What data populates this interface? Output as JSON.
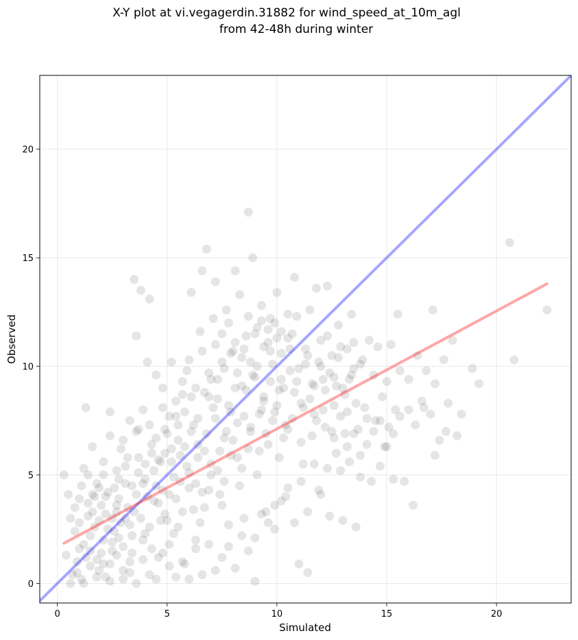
{
  "chart_data": {
    "type": "scatter",
    "title": [
      "X-Y plot at vi.vegagerdin.31882 for wind_speed_at_10m_agl",
      "from 42-48h during winter"
    ],
    "xlabel": "Simulated",
    "ylabel": "Observed",
    "xlim": [
      -0.8,
      23.4
    ],
    "ylim": [
      -0.9,
      23.4
    ],
    "xticks": [
      0,
      5,
      10,
      15,
      20
    ],
    "yticks": [
      0,
      5,
      10,
      15,
      20
    ],
    "xtick_labels": [
      "0",
      "5",
      "10",
      "15",
      "20"
    ],
    "ytick_labels": [
      "0",
      "5",
      "10",
      "15",
      "20"
    ],
    "grid": true,
    "point_color": "#000000",
    "point_opacity": 0.1,
    "points": [
      [
        0.3,
        5.0
      ],
      [
        0.5,
        4.1
      ],
      [
        0.6,
        3.0
      ],
      [
        0.8,
        2.4
      ],
      [
        1.0,
        1.6
      ],
      [
        1.1,
        0.2
      ],
      [
        1.2,
        5.3
      ],
      [
        1.3,
        8.1
      ],
      [
        1.4,
        3.1
      ],
      [
        1.5,
        2.2
      ],
      [
        1.6,
        6.3
      ],
      [
        1.7,
        4.0
      ],
      [
        1.8,
        1.1
      ],
      [
        1.9,
        2.9
      ],
      [
        2.0,
        3.6
      ],
      [
        2.1,
        5.0
      ],
      [
        2.2,
        0.3
      ],
      [
        2.3,
        2.5
      ],
      [
        2.4,
        7.9
      ],
      [
        2.5,
        1.9
      ],
      [
        2.6,
        4.4
      ],
      [
        2.7,
        3.3
      ],
      [
        2.8,
        2.1
      ],
      [
        2.9,
        6.2
      ],
      [
        3.0,
        0.6
      ],
      [
        3.1,
        3.0
      ],
      [
        3.2,
        5.8
      ],
      [
        3.3,
        2.7
      ],
      [
        3.4,
        1.4
      ],
      [
        3.5,
        14.0
      ],
      [
        3.6,
        11.4
      ],
      [
        3.7,
        7.1
      ],
      [
        3.8,
        13.5
      ],
      [
        3.9,
        4.6
      ],
      [
        4.0,
        2.3
      ],
      [
        4.1,
        10.2
      ],
      [
        4.2,
        13.1
      ],
      [
        4.3,
        6.0
      ],
      [
        4.4,
        3.8
      ],
      [
        4.5,
        9.6
      ],
      [
        4.6,
        1.2
      ],
      [
        4.7,
        5.6
      ],
      [
        4.8,
        8.1
      ],
      [
        4.9,
        3.2
      ],
      [
        5.0,
        6.9
      ],
      [
        5.1,
        1.8
      ],
      [
        5.2,
        10.2
      ],
      [
        5.3,
        4.9
      ],
      [
        5.4,
        7.7
      ],
      [
        5.5,
        2.6
      ],
      [
        5.6,
        5.9
      ],
      [
        5.7,
        8.7
      ],
      [
        5.8,
        0.9
      ],
      [
        5.9,
        9.8
      ],
      [
        6.0,
        4.4
      ],
      [
        6.1,
        13.4
      ],
      [
        6.2,
        7.3
      ],
      [
        6.3,
        2.0
      ],
      [
        6.4,
        6.4
      ],
      [
        6.5,
        11.6
      ],
      [
        6.6,
        14.4
      ],
      [
        6.7,
        3.5
      ],
      [
        6.8,
        15.4
      ],
      [
        6.9,
        8.6
      ],
      [
        7.0,
        5.0
      ],
      [
        7.1,
        12.2
      ],
      [
        7.2,
        13.9
      ],
      [
        7.3,
        9.4
      ],
      [
        7.4,
        4.1
      ],
      [
        7.5,
        11.5
      ],
      [
        7.6,
        6.7
      ],
      [
        7.7,
        12.6
      ],
      [
        7.8,
        2.7
      ],
      [
        7.9,
        7.9
      ],
      [
        8.0,
        10.7
      ],
      [
        8.1,
        14.4
      ],
      [
        8.2,
        5.8
      ],
      [
        8.3,
        13.3
      ],
      [
        8.4,
        9.1
      ],
      [
        8.5,
        3.0
      ],
      [
        8.6,
        11.4
      ],
      [
        8.7,
        17.1
      ],
      [
        8.8,
        7.2
      ],
      [
        8.9,
        15.0
      ],
      [
        9.0,
        0.1
      ],
      [
        9.1,
        10.0
      ],
      [
        9.2,
        6.1
      ],
      [
        9.3,
        12.1
      ],
      [
        9.4,
        8.4
      ],
      [
        9.5,
        3.3
      ],
      [
        9.6,
        11.7
      ],
      [
        9.7,
        9.3
      ],
      [
        9.8,
        7.5
      ],
      [
        9.9,
        2.5
      ],
      [
        10.0,
        13.4
      ],
      [
        10.1,
        8.9
      ],
      [
        10.2,
        10.6
      ],
      [
        10.3,
        6.7
      ],
      [
        10.4,
        4.0
      ],
      [
        10.5,
        11.3
      ],
      [
        10.6,
        9.8
      ],
      [
        10.7,
        7.6
      ],
      [
        10.8,
        14.1
      ],
      [
        10.9,
        12.3
      ],
      [
        11.0,
        0.9
      ],
      [
        11.1,
        8.3
      ],
      [
        11.2,
        5.5
      ],
      [
        11.3,
        10.1
      ],
      [
        11.4,
        0.5
      ],
      [
        11.5,
        12.6
      ],
      [
        11.6,
        6.8
      ],
      [
        11.7,
        9.1
      ],
      [
        11.8,
        13.6
      ],
      [
        11.9,
        4.3
      ],
      [
        12.0,
        11.2
      ],
      [
        12.1,
        8.0
      ],
      [
        12.2,
        7.2
      ],
      [
        12.3,
        13.7
      ],
      [
        12.4,
        3.1
      ],
      [
        12.5,
        10.5
      ],
      [
        12.6,
        9.5
      ],
      [
        12.7,
        6.0
      ],
      [
        12.8,
        11.9
      ],
      [
        12.9,
        7.7
      ],
      [
        13.0,
        2.9
      ],
      [
        13.1,
        8.7
      ],
      [
        13.2,
        10.8
      ],
      [
        13.3,
        5.6
      ],
      [
        13.4,
        12.4
      ],
      [
        13.5,
        9.9
      ],
      [
        13.6,
        2.6
      ],
      [
        13.7,
        7.1
      ],
      [
        13.8,
        4.9
      ],
      [
        13.9,
        10.3
      ],
      [
        14.0,
        8.1
      ],
      [
        14.1,
        6.4
      ],
      [
        14.2,
        11.2
      ],
      [
        14.3,
        4.7
      ],
      [
        14.4,
        9.6
      ],
      [
        14.5,
        7.5
      ],
      [
        14.6,
        10.9
      ],
      [
        14.7,
        5.4
      ],
      [
        14.8,
        8.6
      ],
      [
        14.9,
        6.3
      ],
      [
        15.0,
        9.3
      ],
      [
        15.1,
        7.2
      ],
      [
        15.2,
        11.0
      ],
      [
        15.3,
        4.8
      ],
      [
        15.4,
        8.0
      ],
      [
        15.5,
        12.4
      ],
      [
        15.6,
        9.8
      ],
      [
        15.8,
        4.7
      ],
      [
        16.0,
        9.4
      ],
      [
        16.2,
        3.6
      ],
      [
        16.4,
        10.5
      ],
      [
        16.6,
        8.4
      ],
      [
        16.8,
        9.8
      ],
      [
        17.0,
        7.8
      ],
      [
        17.1,
        12.6
      ],
      [
        17.2,
        5.9
      ],
      [
        17.4,
        6.6
      ],
      [
        17.6,
        10.3
      ],
      [
        17.8,
        8.3
      ],
      [
        18.0,
        11.2
      ],
      [
        18.2,
        6.8
      ],
      [
        18.4,
        7.8
      ],
      [
        18.9,
        9.9
      ],
      [
        19.2,
        9.2
      ],
      [
        20.6,
        15.7
      ],
      [
        20.8,
        10.3
      ],
      [
        22.3,
        12.6
      ],
      [
        0.9,
        0.5
      ],
      [
        1.2,
        1.8
      ],
      [
        1.5,
        0.8
      ],
      [
        1.7,
        2.6
      ],
      [
        2.0,
        1.4
      ],
      [
        2.2,
        3.2
      ],
      [
        2.4,
        0.9
      ],
      [
        2.6,
        2.4
      ],
      [
        2.8,
        3.9
      ],
      [
        3.0,
        1.7
      ],
      [
        3.2,
        3.5
      ],
      [
        3.4,
        2.2
      ],
      [
        3.6,
        4.1
      ],
      [
        3.8,
        3.0
      ],
      [
        4.0,
        4.8
      ],
      [
        4.2,
        2.6
      ],
      [
        4.4,
        5.2
      ],
      [
        4.6,
        3.7
      ],
      [
        4.8,
        4.3
      ],
      [
        5.0,
        2.9
      ],
      [
        5.2,
        5.6
      ],
      [
        5.4,
        3.9
      ],
      [
        5.6,
        4.7
      ],
      [
        5.8,
        6.3
      ],
      [
        6.0,
        5.1
      ],
      [
        6.2,
        3.4
      ],
      [
        6.4,
        5.8
      ],
      [
        6.6,
        4.2
      ],
      [
        6.8,
        6.9
      ],
      [
        7.0,
        5.5
      ],
      [
        7.2,
        7.6
      ],
      [
        7.4,
        6.1
      ],
      [
        7.6,
        4.7
      ],
      [
        7.8,
        8.2
      ],
      [
        8.0,
        6.6
      ],
      [
        8.2,
        7.4
      ],
      [
        8.4,
        5.3
      ],
      [
        8.6,
        8.9
      ],
      [
        8.8,
        7.0
      ],
      [
        9.0,
        9.5
      ],
      [
        9.2,
        7.8
      ],
      [
        9.4,
        8.6
      ],
      [
        9.6,
        6.4
      ],
      [
        9.8,
        10.1
      ],
      [
        10.0,
        8.2
      ],
      [
        10.2,
        9.4
      ],
      [
        10.4,
        7.3
      ],
      [
        10.6,
        10.8
      ],
      [
        10.8,
        8.8
      ],
      [
        11.0,
        9.9
      ],
      [
        11.2,
        8.1
      ],
      [
        11.4,
        10.5
      ],
      [
        11.6,
        9.2
      ],
      [
        11.8,
        7.5
      ],
      [
        12.0,
        10.0
      ],
      [
        12.2,
        8.9
      ],
      [
        12.4,
        9.7
      ],
      [
        12.6,
        8.2
      ],
      [
        12.8,
        10.4
      ],
      [
        13.0,
        9.0
      ],
      [
        13.2,
        7.9
      ],
      [
        13.4,
        9.6
      ],
      [
        13.6,
        8.3
      ],
      [
        13.8,
        10.1
      ],
      [
        0.4,
        1.3
      ],
      [
        0.7,
        0.4
      ],
      [
        1.0,
        2.8
      ],
      [
        1.3,
        1.2
      ],
      [
        1.6,
        3.3
      ],
      [
        1.9,
        0.6
      ],
      [
        2.1,
        2.0
      ],
      [
        2.3,
        4.2
      ],
      [
        2.5,
        1.5
      ],
      [
        2.7,
        3.6
      ],
      [
        2.9,
        2.8
      ],
      [
        3.1,
        4.6
      ],
      [
        3.3,
        1.0
      ],
      [
        3.5,
        3.3
      ],
      [
        3.7,
        5.1
      ],
      [
        3.9,
        2.0
      ],
      [
        4.1,
        4.0
      ],
      [
        4.3,
        1.6
      ],
      [
        4.5,
        4.5
      ],
      [
        4.7,
        2.9
      ],
      [
        4.9,
        6.0
      ],
      [
        5.1,
        4.1
      ],
      [
        5.3,
        2.3
      ],
      [
        5.5,
        6.6
      ],
      [
        5.7,
        3.3
      ],
      [
        5.9,
        5.4
      ],
      [
        6.1,
        7.0
      ],
      [
        6.3,
        4.6
      ],
      [
        6.5,
        2.8
      ],
      [
        6.7,
        6.1
      ],
      [
        6.9,
        4.3
      ],
      [
        7.1,
        8.1
      ],
      [
        7.3,
        5.2
      ],
      [
        7.5,
        3.6
      ],
      [
        7.7,
        7.0
      ],
      [
        7.9,
        5.9
      ],
      [
        8.1,
        9.0
      ],
      [
        8.3,
        4.5
      ],
      [
        8.5,
        7.7
      ],
      [
        8.7,
        6.2
      ],
      [
        8.9,
        9.6
      ],
      [
        9.1,
        5.0
      ],
      [
        9.3,
        8.0
      ],
      [
        9.5,
        6.9
      ],
      [
        9.7,
        10.7
      ],
      [
        9.9,
        7.9
      ],
      [
        10.1,
        5.8
      ],
      [
        10.3,
        9.0
      ],
      [
        10.5,
        7.1
      ],
      [
        10.7,
        11.5
      ],
      [
        10.9,
        9.3
      ],
      [
        11.1,
        6.5
      ],
      [
        11.3,
        10.8
      ],
      [
        11.5,
        8.5
      ],
      [
        11.7,
        7.8
      ],
      [
        11.9,
        10.2
      ],
      [
        12.1,
        9.4
      ],
      [
        12.3,
        11.4
      ],
      [
        12.5,
        7.0
      ],
      [
        12.7,
        9.1
      ],
      [
        12.9,
        10.9
      ],
      [
        13.1,
        6.9
      ],
      [
        13.3,
        9.4
      ],
      [
        13.5,
        11.1
      ],
      [
        1.1,
        4.5
      ],
      [
        1.4,
        5.0
      ],
      [
        1.8,
        4.6
      ],
      [
        2.1,
        5.6
      ],
      [
        2.4,
        6.8
      ],
      [
        2.7,
        5.2
      ],
      [
        3.0,
        6.6
      ],
      [
        3.3,
        7.5
      ],
      [
        3.6,
        7.0
      ],
      [
        3.9,
        8.0
      ],
      [
        4.2,
        7.3
      ],
      [
        4.5,
        6.7
      ],
      [
        4.8,
        9.0
      ],
      [
        5.1,
        7.7
      ],
      [
        5.4,
        8.4
      ],
      [
        5.7,
        9.3
      ],
      [
        6.0,
        10.3
      ],
      [
        6.3,
        9.0
      ],
      [
        6.6,
        10.7
      ],
      [
        6.9,
        9.7
      ],
      [
        7.2,
        11.0
      ],
      [
        7.5,
        10.2
      ],
      [
        7.8,
        12.0
      ],
      [
        8.1,
        11.1
      ],
      [
        8.4,
        10.4
      ],
      [
        8.7,
        12.3
      ],
      [
        9.0,
        11.5
      ],
      [
        9.3,
        12.8
      ],
      [
        9.6,
        11.1
      ],
      [
        9.9,
        12.0
      ],
      [
        10.2,
        11.6
      ],
      [
        10.5,
        12.4
      ],
      [
        0.6,
        0.0
      ],
      [
        0.9,
        1.0
      ],
      [
        1.2,
        0.0
      ],
      [
        1.5,
        1.5
      ],
      [
        1.8,
        0.3
      ],
      [
        2.1,
        0.9
      ],
      [
        2.4,
        0.1
      ],
      [
        2.7,
        1.3
      ],
      [
        3.0,
        0.2
      ],
      [
        3.3,
        0.5
      ],
      [
        3.6,
        0.0
      ],
      [
        3.9,
        1.1
      ],
      [
        4.2,
        0.4
      ],
      [
        4.5,
        0.2
      ],
      [
        4.8,
        1.4
      ],
      [
        5.1,
        0.8
      ],
      [
        5.4,
        0.3
      ],
      [
        5.7,
        1.0
      ],
      [
        6.0,
        0.2
      ],
      [
        6.3,
        1.6
      ],
      [
        6.6,
        0.4
      ],
      [
        6.9,
        1.8
      ],
      [
        7.2,
        0.6
      ],
      [
        7.5,
        1.2
      ],
      [
        7.8,
        1.7
      ],
      [
        8.1,
        0.7
      ],
      [
        8.4,
        2.2
      ],
      [
        8.7,
        1.5
      ],
      [
        9.0,
        2.1
      ],
      [
        9.3,
        3.2
      ],
      [
        9.6,
        2.8
      ],
      [
        9.9,
        3.6
      ],
      [
        10.2,
        3.8
      ],
      [
        10.5,
        4.4
      ],
      [
        10.8,
        2.8
      ],
      [
        11.1,
        4.7
      ],
      [
        11.4,
        3.3
      ],
      [
        11.7,
        5.5
      ],
      [
        12.0,
        4.1
      ],
      [
        12.3,
        5.3
      ],
      [
        12.6,
        6.7
      ],
      [
        12.9,
        5.2
      ],
      [
        13.2,
        6.3
      ],
      [
        13.5,
        6.9
      ],
      [
        13.8,
        5.9
      ],
      [
        14.1,
        7.6
      ],
      [
        14.4,
        7.0
      ],
      [
        14.7,
        7.5
      ],
      [
        15.0,
        6.3
      ],
      [
        15.3,
        6.9
      ],
      [
        15.6,
        7.7
      ],
      [
        16.0,
        8.0
      ],
      [
        16.3,
        7.3
      ],
      [
        16.7,
        8.1
      ],
      [
        17.2,
        9.2
      ],
      [
        17.7,
        7.0
      ],
      [
        0.8,
        3.5
      ],
      [
        1.0,
        3.9
      ],
      [
        1.4,
        3.7
      ],
      [
        1.6,
        4.1
      ],
      [
        1.9,
        4.4
      ],
      [
        2.2,
        4.0
      ],
      [
        2.5,
        3.0
      ],
      [
        2.8,
        4.8
      ],
      [
        3.1,
        5.4
      ],
      [
        3.4,
        4.5
      ],
      [
        3.7,
        5.8
      ],
      [
        4.0,
        5.5
      ],
      [
        4.3,
        6.4
      ],
      [
        4.6,
        5.7
      ],
      [
        4.9,
        7.1
      ],
      [
        5.2,
        6.2
      ],
      [
        5.5,
        7.3
      ],
      [
        5.8,
        7.9
      ],
      [
        6.1,
        8.6
      ],
      [
        6.4,
        7.6
      ],
      [
        6.7,
        8.8
      ],
      [
        7.0,
        9.4
      ],
      [
        7.3,
        8.5
      ],
      [
        7.6,
        9.9
      ],
      [
        7.9,
        10.6
      ],
      [
        8.2,
        9.7
      ],
      [
        8.5,
        10.8
      ],
      [
        8.8,
        10.2
      ],
      [
        9.1,
        11.8
      ],
      [
        9.4,
        10.9
      ],
      [
        9.7,
        12.2
      ],
      [
        10.0,
        11.3
      ]
    ],
    "fit_lines": [
      {
        "color": "#0000ff",
        "opacity": 0.35,
        "x": [
          -0.8,
          23.4
        ],
        "y": [
          -0.8,
          23.4
        ]
      },
      {
        "color": "#ff0000",
        "opacity": 0.35,
        "x": [
          0.3,
          22.3
        ],
        "y": [
          1.85,
          13.8
        ]
      }
    ]
  }
}
